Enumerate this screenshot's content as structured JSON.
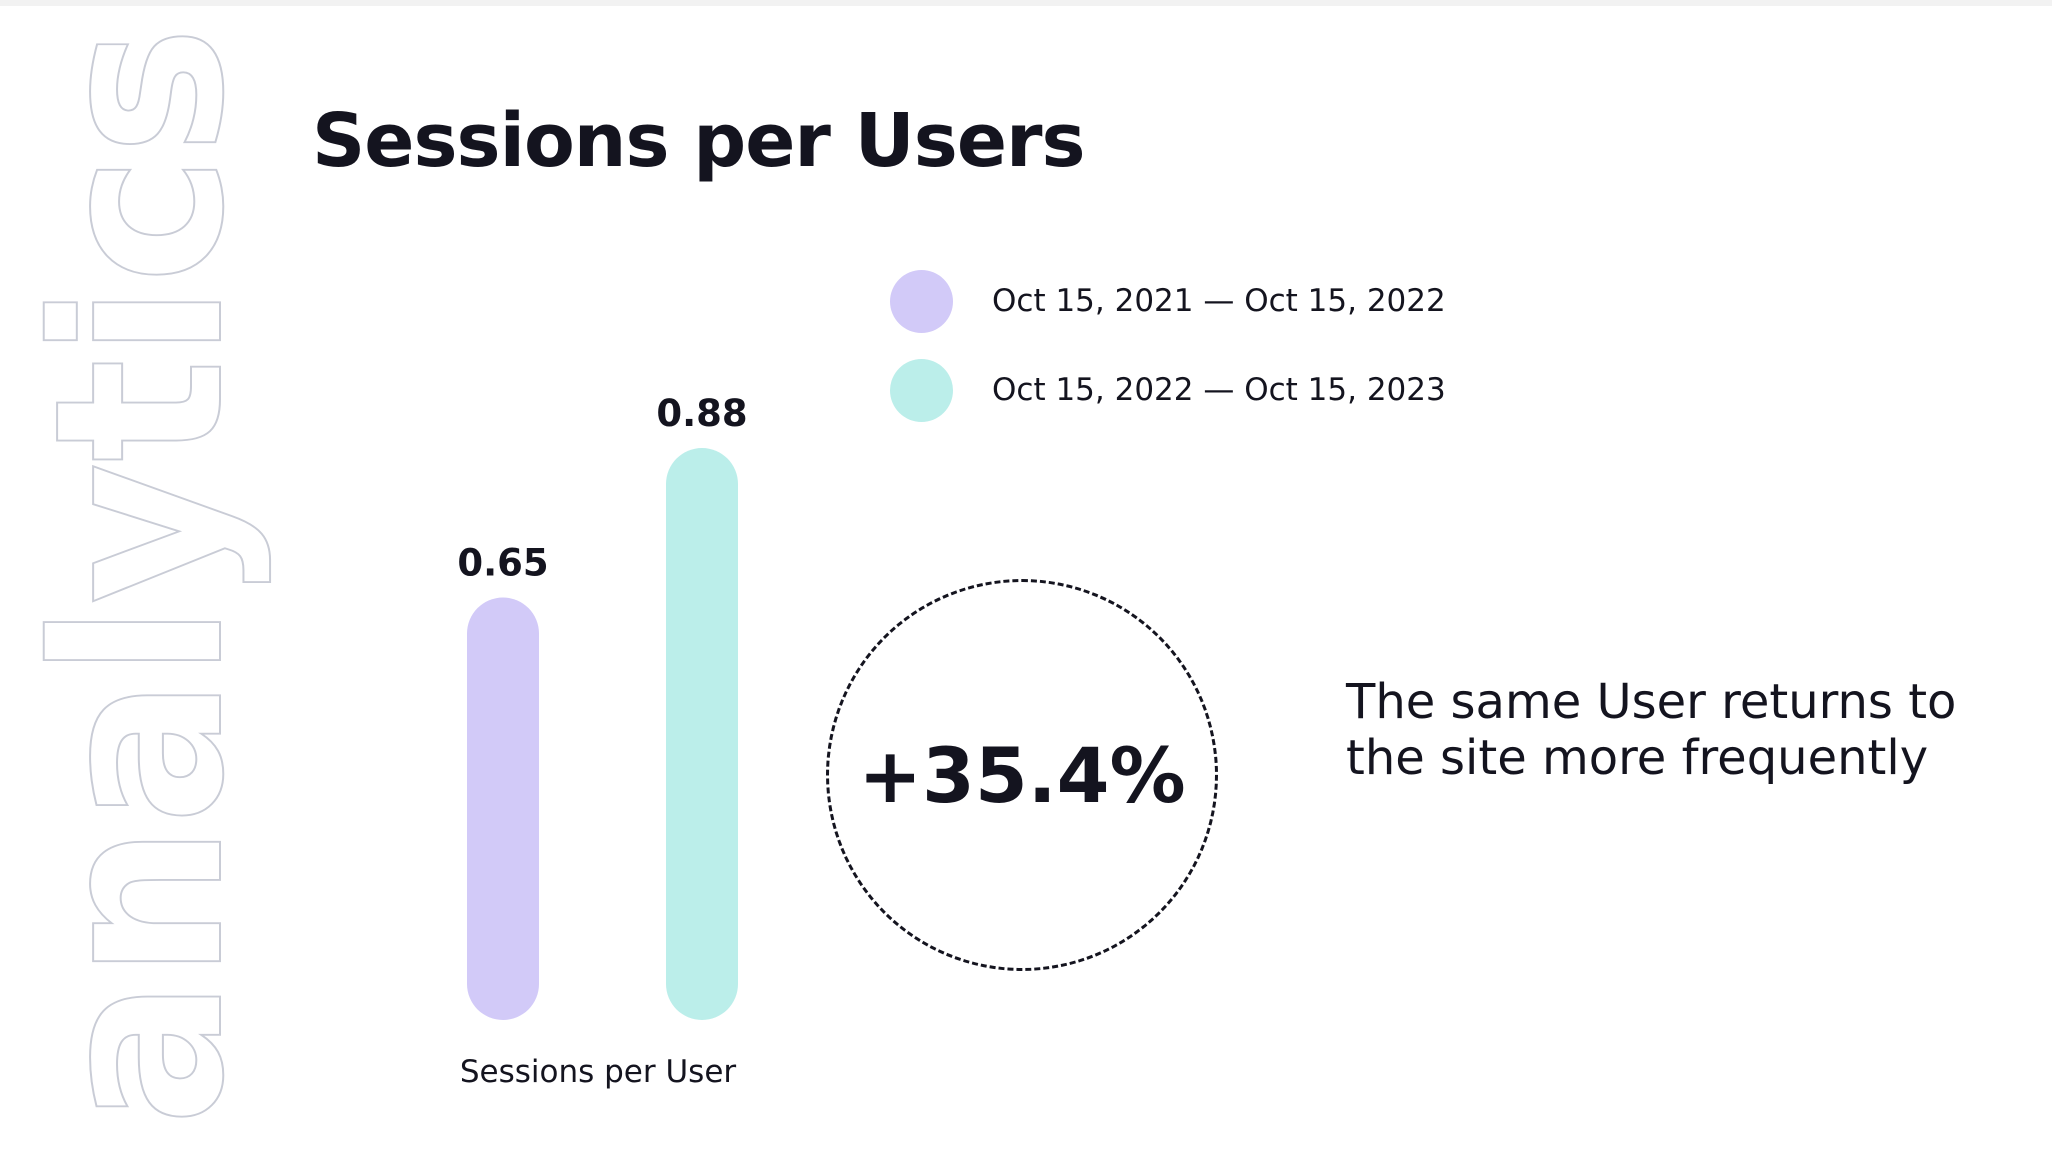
{
  "watermark": "analytics",
  "title": "Sessions per Users",
  "colors": {
    "series_2021": "#d2caf8",
    "series_2022": "#bbeeea",
    "text": "#14141f"
  },
  "chart_data": {
    "type": "bar",
    "categories": [
      "Sessions per User"
    ],
    "series": [
      {
        "name": "Oct 15, 2021 — Oct 15, 2022",
        "values": [
          0.65
        ],
        "color": "#d2caf8"
      },
      {
        "name": "Oct 15, 2022 — Oct 15, 2023",
        "values": [
          0.88
        ],
        "color": "#bbeeea"
      }
    ],
    "xlabel": "Sessions per User",
    "ylabel": "",
    "ylim": [
      0,
      1
    ],
    "grid": false,
    "legend": "top-right"
  },
  "highlight": {
    "change": "+35.4%",
    "note": "The same User returns to the site more frequently"
  }
}
